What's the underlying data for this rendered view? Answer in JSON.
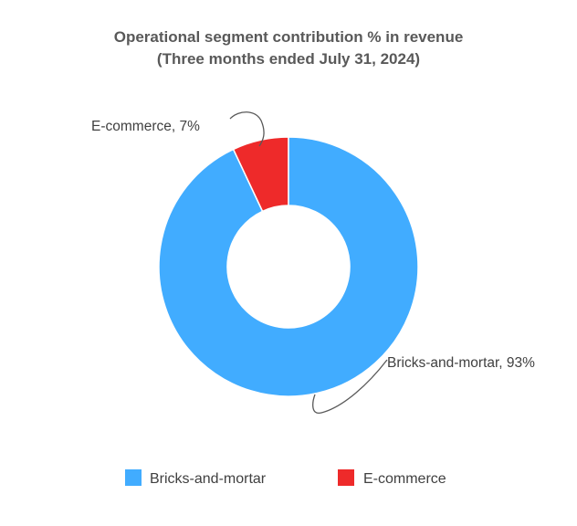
{
  "chart_data": {
    "type": "pie",
    "variant": "donut",
    "title": "Operational segment contribution % in revenue",
    "subtitle": "(Three months ended July 31, 2024)",
    "series": [
      {
        "name": "Bricks-and-mortar",
        "value": 93,
        "color": "#41ACFF",
        "label": "Bricks-and-mortar, 93%"
      },
      {
        "name": "E-commerce",
        "value": 7,
        "color": "#EE2A2A",
        "label": "E-commerce, 7%"
      }
    ],
    "legend": {
      "position": "bottom",
      "entries": [
        "Bricks-and-mortar",
        "E-commerce"
      ]
    }
  }
}
